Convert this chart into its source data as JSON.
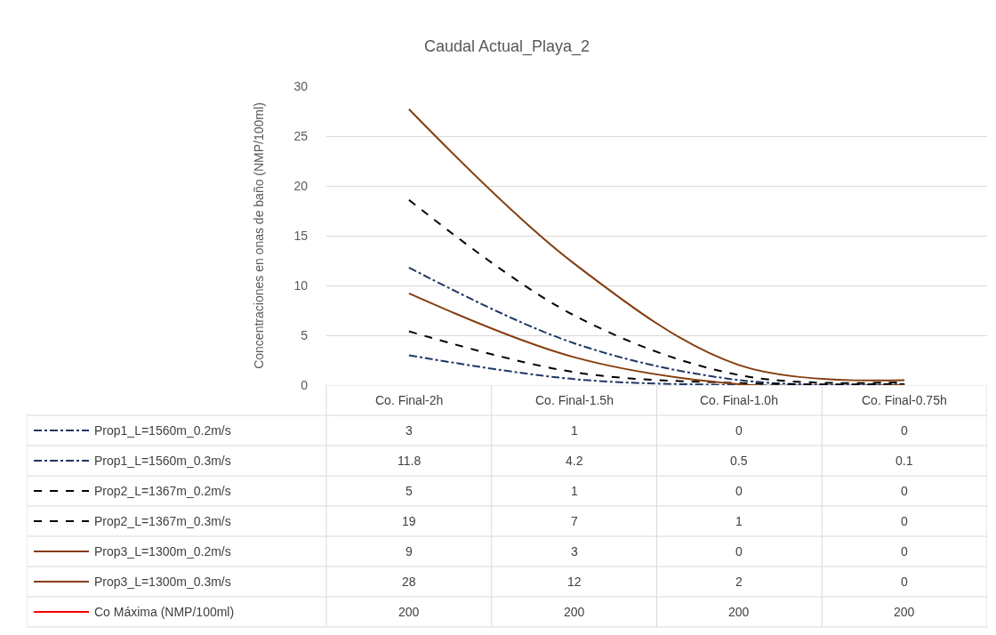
{
  "chart_data": {
    "type": "line",
    "title": "Caudal Actual_Playa_2",
    "ylabel": "Concentraciones en onas de baño (NMP/100ml)",
    "categories": [
      "Co. Final-2h",
      "Co. Final-1.5h",
      "Co. Final-1.0h",
      "Co. Final-0.75h"
    ],
    "series": [
      {
        "name": "Prop1_L=1560m_0.2m/s",
        "color": "#203864",
        "line_style": "dashdot",
        "values": [
          3,
          0.6,
          0,
          0
        ],
        "value_labels": [
          "3",
          "1",
          "0",
          "0"
        ]
      },
      {
        "name": "Prop1_L=1560m_0.3m/s",
        "color": "#203864",
        "line_style": "dashdot",
        "values": [
          11.8,
          4.2,
          0.5,
          0.1
        ],
        "value_labels": [
          "11.8",
          "4.2",
          "0.5",
          "0.1"
        ]
      },
      {
        "name": "Prop2_L=1367m_0.2m/s",
        "color": "#000000",
        "line_style": "dashed",
        "values": [
          5.4,
          1.3,
          0.2,
          0.1
        ],
        "value_labels": [
          "5",
          "1",
          "0",
          "0"
        ]
      },
      {
        "name": "Prop2_L=1367m_0.3m/s",
        "color": "#000000",
        "line_style": "dashed",
        "values": [
          18.6,
          7,
          1,
          0.3
        ],
        "value_labels": [
          "19",
          "7",
          "1",
          "0"
        ]
      },
      {
        "name": "Prop3_L=1300m_0.2m/s",
        "color": "#843c0c",
        "line_style": "solid",
        "values": [
          9.2,
          2.8,
          0.1,
          0
        ],
        "value_labels": [
          "9",
          "3",
          "0",
          "0"
        ]
      },
      {
        "name": "Prop3_L=1300m_0.3m/s",
        "color": "#843c0c",
        "line_style": "solid",
        "values": [
          27.7,
          12.2,
          2,
          0.5
        ],
        "value_labels": [
          "28",
          "12",
          "2",
          "0"
        ]
      },
      {
        "name": "Co Máxima (NMP/100ml)",
        "color": "#ff0000",
        "line_style": "solid",
        "values": [
          null,
          null,
          null,
          null
        ],
        "value_labels": [
          "200",
          "200",
          "200",
          "200"
        ]
      }
    ],
    "ylim": [
      0,
      30
    ],
    "yticks": [
      0,
      5,
      10,
      15,
      20,
      25,
      30
    ],
    "grid": "y",
    "marker": "none",
    "legend": "bottom left"
  }
}
